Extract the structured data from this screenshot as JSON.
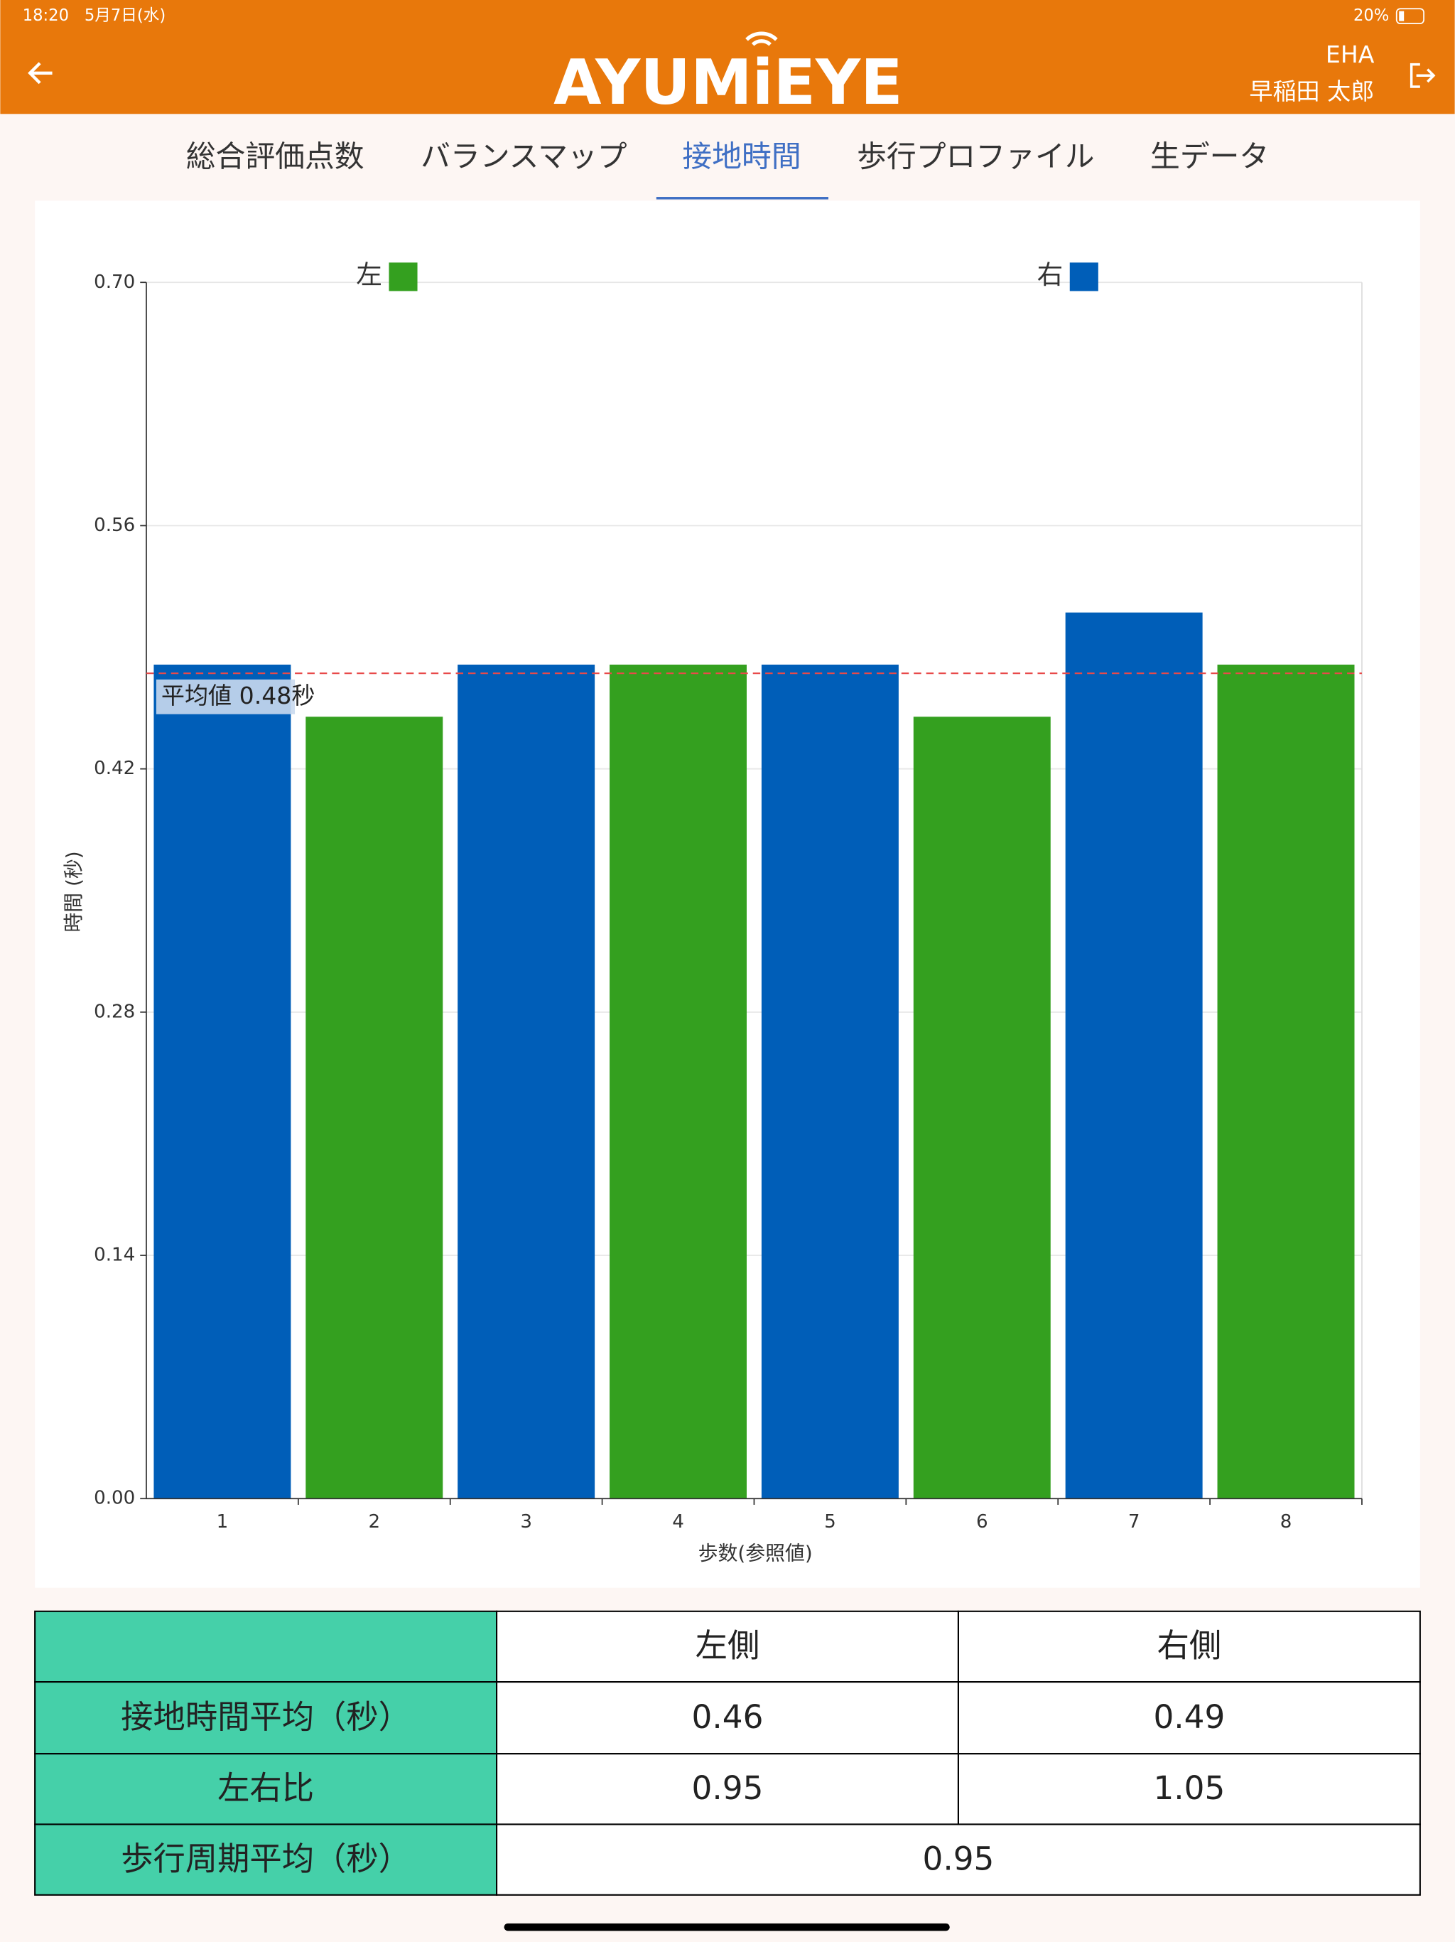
{
  "status_bar": {
    "time": "18:20",
    "date": "5月7日(水)",
    "battery": "20%"
  },
  "header": {
    "logo": "AYUMiEYE",
    "facility": "EHA",
    "user": "早稲田 太郎"
  },
  "tabs": {
    "items": [
      "総合評価点数",
      "バランスマップ",
      "接地時間",
      "歩行プロファイル",
      "生データ"
    ],
    "active": 2
  },
  "chart_data": {
    "type": "bar",
    "categories": [
      "1",
      "2",
      "3",
      "4",
      "5",
      "6",
      "7",
      "8"
    ],
    "series": [
      {
        "name": "左",
        "color": "#34a01f",
        "values": [
          null,
          0.45,
          null,
          0.48,
          null,
          0.45,
          null,
          0.48
        ]
      },
      {
        "name": "右",
        "color": "#005eb8",
        "values": [
          0.48,
          null,
          0.48,
          null,
          0.48,
          null,
          0.51,
          null
        ]
      }
    ],
    "ylim": [
      0,
      0.7
    ],
    "yticks": [
      {
        "value": 0,
        "label": "0.00"
      },
      0.14,
      0.28,
      0.42,
      0.56,
      {
        "value": 0.7,
        "label": "0.70"
      }
    ],
    "y_label": "時間 (秒)",
    "x_label": "歩数(参照値)",
    "average": {
      "value": 0.475,
      "label": "平均値 0.48秒"
    },
    "grid": true
  },
  "table": {
    "header": [
      "左側",
      "右側"
    ],
    "rows": [
      [
        "接地時間平均（秒）",
        "0.46",
        "0.49"
      ],
      [
        "左右比",
        "0.95",
        "1.05"
      ],
      [
        "歩行周期平均（秒）",
        "0.95"
      ]
    ]
  }
}
